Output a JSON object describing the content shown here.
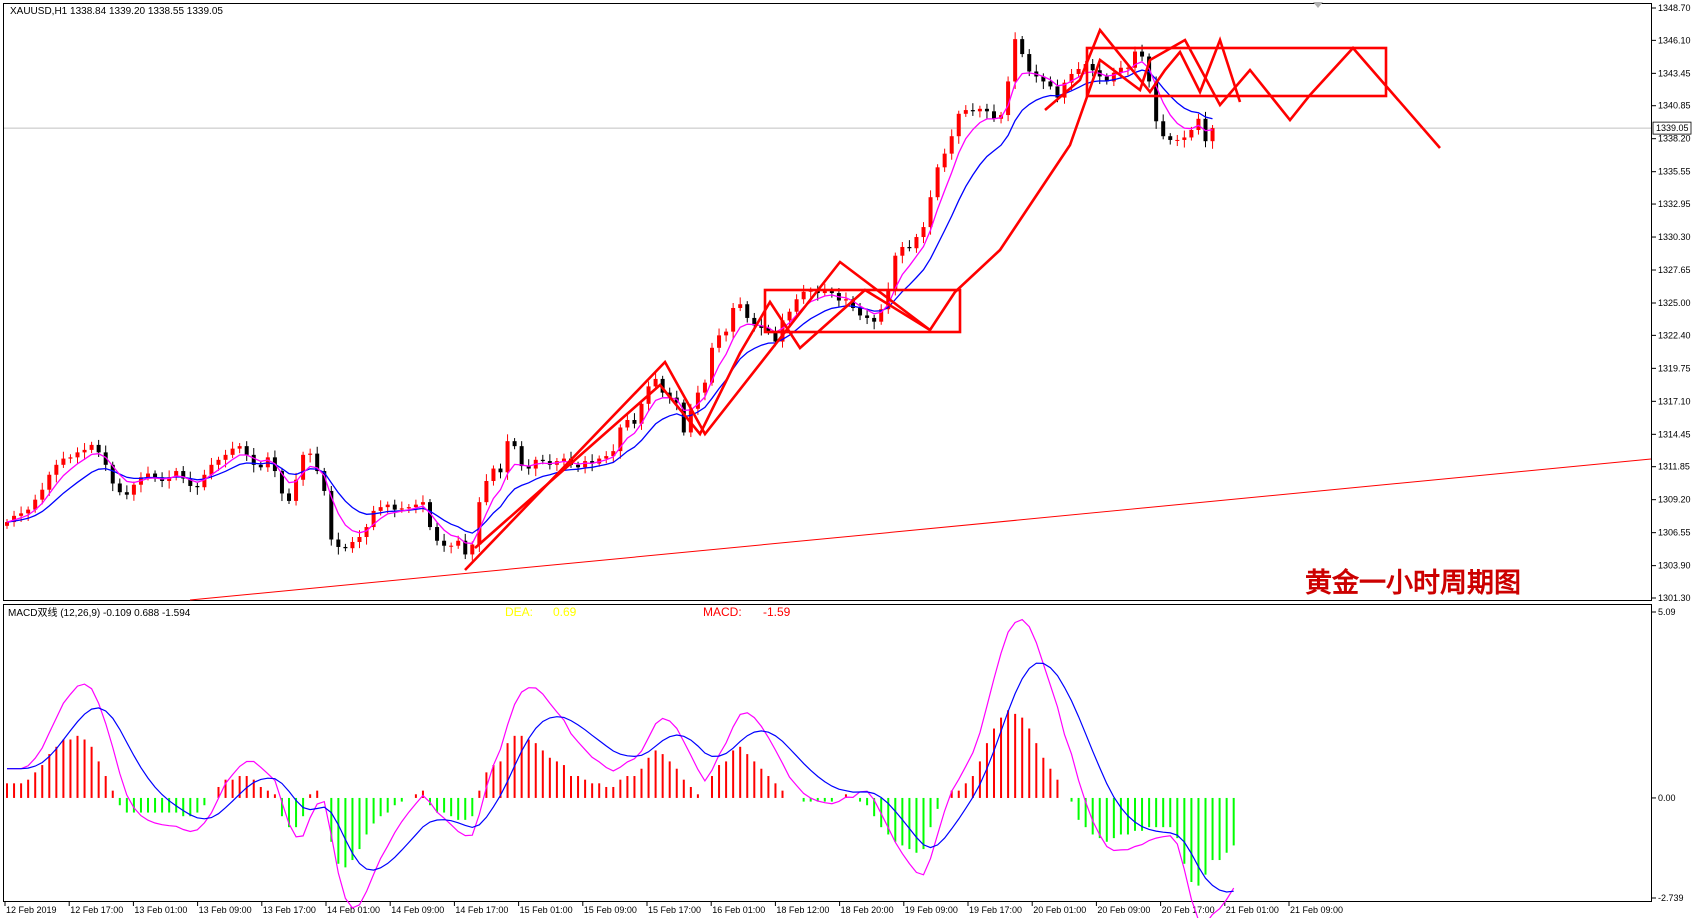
{
  "chart_data": [
    {
      "type": "candlestick",
      "symbol_line": "XAUUSD,H1  1338.84 1339.20 1338.55 1339.05",
      "annotation": "黄金一小时周期图",
      "current_price": "1339.05",
      "ylim": [
        1301.3,
        1348.7
      ],
      "y_ticks": [
        "1348.70",
        "1346.10",
        "1343.45",
        "1340.85",
        "1338.20",
        "1335.55",
        "1332.95",
        "1330.30",
        "1327.65",
        "1325.00",
        "1322.40",
        "1319.75",
        "1317.10",
        "1314.45",
        "1311.85",
        "1309.20",
        "1306.55",
        "1303.90",
        "1301.30"
      ],
      "x_ticks": [
        "12 Feb 2019",
        "12 Feb 17:00",
        "13 Feb 01:00",
        "13 Feb 09:00",
        "13 Feb 17:00",
        "14 Feb 01:00",
        "14 Feb 09:00",
        "14 Feb 17:00",
        "15 Feb 01:00",
        "15 Feb 09:00",
        "15 Feb 17:00",
        "16 Feb 01:00",
        "18 Feb 12:00",
        "18 Feb 20:00",
        "19 Feb 09:00",
        "19 Feb 17:00",
        "20 Feb 01:00",
        "20 Feb 09:00",
        "20 Feb 17:00",
        "21 Feb 01:00",
        "21 Feb 09:00"
      ],
      "close_series": [
        1307.4,
        1307.9,
        1308.1,
        1308.4,
        1309.2,
        1310.0,
        1311.2,
        1312.0,
        1312.5,
        1312.6,
        1313.0,
        1313.2,
        1313.6,
        1313.0,
        1312.0,
        1310.5,
        1309.8,
        1309.6,
        1310.4,
        1311.0,
        1311.3,
        1311.0,
        1310.7,
        1311.0,
        1311.5,
        1310.9,
        1310.3,
        1310.2,
        1311.2,
        1312.0,
        1312.4,
        1312.8,
        1313.3,
        1313.5,
        1312.8,
        1312.0,
        1311.8,
        1312.6,
        1311.5,
        1309.7,
        1309.1,
        1310.8,
        1312.8,
        1312.9,
        1311.5,
        1309.9,
        1306.0,
        1305.4,
        1305.3,
        1305.8,
        1306.2,
        1307.0,
        1308.3,
        1308.6,
        1308.8,
        1308.4,
        1308.5,
        1308.6,
        1308.8,
        1309.0,
        1307.0,
        1305.9,
        1305.5,
        1305.5,
        1305.9,
        1304.8,
        1305.6,
        1309.0,
        1310.7,
        1311.7,
        1311.4,
        1313.9,
        1313.5,
        1311.9,
        1311.7,
        1312.4,
        1312.3,
        1312.0,
        1312.3,
        1312.5,
        1312.0,
        1311.8,
        1312.3,
        1312.1,
        1312.5,
        1312.7,
        1313.1,
        1315.0,
        1315.6,
        1315.3,
        1316.9,
        1318.3,
        1318.9,
        1317.8,
        1317.4,
        1317.0,
        1314.6,
        1316.5,
        1317.8,
        1318.6,
        1321.4,
        1322.4,
        1322.7,
        1324.6,
        1324.9,
        1323.8,
        1323.2,
        1323.0,
        1322.7,
        1321.9,
        1323.6,
        1324.3,
        1325.3,
        1325.9,
        1326.0,
        1325.8,
        1326.0,
        1325.8,
        1325.2,
        1325.3,
        1324.6,
        1324.0,
        1323.8,
        1323.5,
        1324.5,
        1326.1,
        1328.8,
        1329.5,
        1329.4,
        1330.3,
        1331.1,
        1333.5,
        1335.9,
        1337.0,
        1338.4,
        1340.2,
        1340.5,
        1340.4,
        1340.6,
        1340.4,
        1339.8,
        1340.1,
        1342.8,
        1346.2,
        1345.0,
        1343.6,
        1343.2,
        1342.8,
        1342.4,
        1341.5,
        1342.7,
        1343.4,
        1343.8,
        1344.2,
        1343.7,
        1343.2,
        1342.8,
        1343.5,
        1343.9,
        1343.9,
        1345.2,
        1344.8,
        1342.8,
        1339.6,
        1338.4,
        1338.1,
        1338.1,
        1338.3,
        1338.9,
        1339.8,
        1338.0,
        1339.05
      ]
    },
    {
      "type": "bar",
      "title": "MACD双线 (12,26,9) -0.109 0.688 -1.594",
      "dea_label": "DEA:",
      "dea_value": "0.69",
      "macd_label": "MACD:",
      "macd_value": "-1.59",
      "ylim": [
        -2.739,
        5.09
      ],
      "y_ticks": [
        "5.09",
        "0.00",
        "-2.739"
      ],
      "histogram": [
        0.4,
        0.4,
        0.4,
        0.5,
        0.7,
        0.9,
        1.2,
        1.4,
        1.6,
        1.6,
        1.7,
        1.6,
        1.4,
        1.0,
        0.6,
        0.2,
        -0.2,
        -0.4,
        -0.4,
        -0.4,
        -0.4,
        -0.4,
        -0.4,
        -0.4,
        -0.4,
        -0.5,
        -0.5,
        -0.4,
        -0.2,
        0.0,
        0.3,
        0.5,
        0.5,
        0.6,
        0.6,
        0.5,
        0.3,
        0.2,
        0.1,
        -0.5,
        -0.8,
        -0.8,
        -0.5,
        0.1,
        0.2,
        0.0,
        -1.2,
        -1.8,
        -1.9,
        -1.7,
        -1.4,
        -1.0,
        -0.7,
        -0.5,
        -0.4,
        -0.2,
        -0.1,
        0.0,
        0.1,
        0.2,
        -0.2,
        -0.4,
        -0.4,
        -0.5,
        -0.6,
        -0.6,
        -0.5,
        0.2,
        0.7,
        0.9,
        1.0,
        1.5,
        1.7,
        1.7,
        1.6,
        1.5,
        1.3,
        1.1,
        1.0,
        0.9,
        0.6,
        0.6,
        0.5,
        0.4,
        0.4,
        0.3,
        0.3,
        0.5,
        0.6,
        0.6,
        0.8,
        1.1,
        1.3,
        1.2,
        1.0,
        0.8,
        0.5,
        0.3,
        0.1,
        0.0,
        0.6,
        0.9,
        1.0,
        1.3,
        1.4,
        1.2,
        1.0,
        0.8,
        0.6,
        0.4,
        0.2,
        0.0,
        0.0,
        -0.1,
        -0.1,
        -0.1,
        -0.1,
        -0.1,
        0.0,
        0.1,
        0.0,
        -0.1,
        -0.2,
        -0.5,
        -0.8,
        -1.0,
        -1.2,
        -1.3,
        -1.4,
        -1.5,
        -1.4,
        -0.8,
        -0.3,
        0.0,
        0.2,
        0.2,
        0.4,
        0.6,
        1.0,
        1.5,
        1.9,
        2.2,
        2.4,
        2.3,
        2.2,
        1.9,
        1.5,
        1.1,
        0.8,
        0.5,
        0.0,
        -0.1,
        -0.6,
        -0.8,
        -1.0,
        -1.1,
        -1.2,
        -1.1,
        -1.0,
        -1.0,
        -0.9,
        -0.9,
        -0.8,
        -0.8,
        -0.8,
        -0.8,
        -1.1,
        -1.8,
        -2.3,
        -2.4,
        -2.1,
        -1.7,
        -1.7,
        -1.5,
        -1.3
      ]
    }
  ],
  "colors": {
    "up": "#ff0000",
    "down": "#000000",
    "ma_fast": "#ff00ff",
    "ma_slow": "#0000ff",
    "pattern": "#ff0000",
    "hist_pos": "#ff0000",
    "hist_neg": "#00ff00",
    "dea_label": "#ffff00",
    "macd_label": "#ff0000",
    "annotation": "#cc0000"
  }
}
